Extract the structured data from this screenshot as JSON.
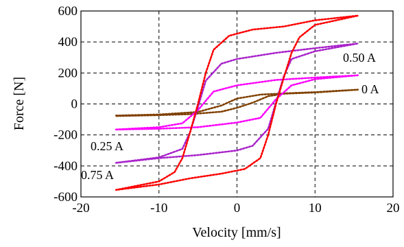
{
  "chart_data": {
    "type": "line",
    "title": "",
    "xlabel": "Velocity [mm/s]",
    "ylabel": "Force [N]",
    "xlim": [
      -20,
      20
    ],
    "ylim": [
      -600,
      600
    ],
    "xticks": [
      -20,
      -10,
      0,
      10,
      20
    ],
    "yticks": [
      600,
      400,
      200,
      0,
      -200,
      -400,
      -600
    ],
    "grid": true,
    "legend": "none",
    "annotations": [
      "0.50 A",
      "0 A",
      "0.25 A",
      "0.75 A"
    ],
    "series": [
      {
        "color": "#000000",
        "upper": [
          [
            -15.5,
            -75
          ],
          [
            -10,
            -68
          ],
          [
            -5,
            -52
          ],
          [
            -2,
            -10
          ],
          [
            0,
            35
          ],
          [
            3,
            60
          ],
          [
            6,
            68
          ],
          [
            10,
            76
          ],
          [
            15.5,
            92
          ]
        ],
        "lower": [
          [
            15.5,
            92
          ],
          [
            10,
            74
          ],
          [
            6,
            66
          ],
          [
            4,
            50
          ],
          [
            2,
            8
          ],
          [
            0,
            -25
          ],
          [
            -2,
            -50
          ],
          [
            -6,
            -66
          ],
          [
            -10,
            -72
          ],
          [
            -15.5,
            -78
          ]
        ]
      },
      {
        "color": "#804000",
        "upper": [
          [
            -15.5,
            -75
          ],
          [
            -10,
            -68
          ],
          [
            -5,
            -52
          ],
          [
            -2,
            -10
          ],
          [
            0,
            35
          ],
          [
            3,
            60
          ],
          [
            6,
            68
          ],
          [
            10,
            76
          ],
          [
            15.5,
            92
          ]
        ],
        "lower": [
          [
            15.5,
            92
          ],
          [
            10,
            74
          ],
          [
            6,
            66
          ],
          [
            4,
            50
          ],
          [
            2,
            8
          ],
          [
            0,
            -25
          ],
          [
            -2,
            -50
          ],
          [
            -6,
            -66
          ],
          [
            -10,
            -72
          ],
          [
            -15.5,
            -78
          ]
        ]
      },
      {
        "color": "#000000",
        "upper": [
          [
            -15.5,
            -165
          ],
          [
            -10,
            -150
          ],
          [
            -7,
            -125
          ],
          [
            -5,
            -40
          ],
          [
            -3,
            80
          ],
          [
            0,
            120
          ],
          [
            5,
            155
          ],
          [
            10,
            170
          ],
          [
            15.5,
            185
          ]
        ],
        "lower": [
          [
            15.5,
            185
          ],
          [
            10,
            160
          ],
          [
            7,
            120
          ],
          [
            5,
            30
          ],
          [
            3,
            -90
          ],
          [
            0,
            -120
          ],
          [
            -5,
            -150
          ],
          [
            -10,
            -160
          ],
          [
            -15.5,
            -165
          ]
        ]
      },
      {
        "color": "#ff00ff",
        "upper": [
          [
            -15.5,
            -165
          ],
          [
            -10,
            -150
          ],
          [
            -7,
            -125
          ],
          [
            -5,
            -40
          ],
          [
            -3,
            80
          ],
          [
            0,
            120
          ],
          [
            5,
            155
          ],
          [
            10,
            170
          ],
          [
            15.5,
            185
          ]
        ],
        "lower": [
          [
            15.5,
            185
          ],
          [
            10,
            160
          ],
          [
            7,
            120
          ],
          [
            5,
            30
          ],
          [
            3,
            -90
          ],
          [
            0,
            -120
          ],
          [
            -5,
            -150
          ],
          [
            -10,
            -160
          ],
          [
            -15.5,
            -165
          ]
        ]
      },
      {
        "color": "#000000",
        "upper": [
          [
            -15.5,
            -380
          ],
          [
            -10,
            -345
          ],
          [
            -7,
            -290
          ],
          [
            -6,
            -180
          ],
          [
            -5,
            -20
          ],
          [
            -4,
            150
          ],
          [
            -2,
            260
          ],
          [
            0,
            290
          ],
          [
            5,
            330
          ],
          [
            10,
            360
          ],
          [
            15.5,
            390
          ]
        ],
        "lower": [
          [
            15.5,
            390
          ],
          [
            10,
            340
          ],
          [
            7,
            290
          ],
          [
            6,
            180
          ],
          [
            5,
            10
          ],
          [
            4,
            -160
          ],
          [
            2,
            -270
          ],
          [
            0,
            -300
          ],
          [
            -5,
            -330
          ],
          [
            -10,
            -350
          ],
          [
            -15.5,
            -380
          ]
        ]
      },
      {
        "color": "#aa22cc",
        "upper": [
          [
            -15.5,
            -380
          ],
          [
            -10,
            -345
          ],
          [
            -7,
            -290
          ],
          [
            -6,
            -180
          ],
          [
            -5,
            -20
          ],
          [
            -4,
            150
          ],
          [
            -2,
            260
          ],
          [
            0,
            290
          ],
          [
            5,
            330
          ],
          [
            10,
            360
          ],
          [
            15.5,
            390
          ]
        ],
        "lower": [
          [
            15.5,
            390
          ],
          [
            10,
            340
          ],
          [
            7,
            290
          ],
          [
            6,
            180
          ],
          [
            5,
            10
          ],
          [
            4,
            -160
          ],
          [
            2,
            -270
          ],
          [
            0,
            -300
          ],
          [
            -5,
            -330
          ],
          [
            -10,
            -350
          ],
          [
            -15.5,
            -380
          ]
        ]
      },
      {
        "color": "#000000",
        "upper": [
          [
            -15.5,
            -555
          ],
          [
            -10,
            -500
          ],
          [
            -8,
            -440
          ],
          [
            -7,
            -350
          ],
          [
            -6,
            -180
          ],
          [
            -5,
            0
          ],
          [
            -4,
            200
          ],
          [
            -3,
            350
          ],
          [
            -1,
            440
          ],
          [
            2,
            480
          ],
          [
            6,
            500
          ],
          [
            10,
            540
          ],
          [
            15.5,
            570
          ]
        ],
        "lower": [
          [
            15.5,
            570
          ],
          [
            10,
            510
          ],
          [
            8,
            430
          ],
          [
            7,
            330
          ],
          [
            6,
            170
          ],
          [
            5,
            0
          ],
          [
            4,
            -200
          ],
          [
            3,
            -350
          ],
          [
            1,
            -420
          ],
          [
            -2,
            -450
          ],
          [
            -6,
            -480
          ],
          [
            -10,
            -520
          ],
          [
            -15.5,
            -555
          ]
        ]
      },
      {
        "color": "#ff0000",
        "upper": [
          [
            -15.5,
            -555
          ],
          [
            -10,
            -500
          ],
          [
            -8,
            -440
          ],
          [
            -7,
            -350
          ],
          [
            -6,
            -180
          ],
          [
            -5,
            0
          ],
          [
            -4,
            200
          ],
          [
            -3,
            350
          ],
          [
            -1,
            440
          ],
          [
            2,
            480
          ],
          [
            6,
            500
          ],
          [
            10,
            540
          ],
          [
            15.5,
            570
          ]
        ],
        "lower": [
          [
            15.5,
            570
          ],
          [
            10,
            510
          ],
          [
            8,
            430
          ],
          [
            7,
            330
          ],
          [
            6,
            170
          ],
          [
            5,
            0
          ],
          [
            4,
            -200
          ],
          [
            3,
            -350
          ],
          [
            1,
            -420
          ],
          [
            -2,
            -450
          ],
          [
            -6,
            -480
          ],
          [
            -10,
            -520
          ],
          [
            -15.5,
            -555
          ]
        ]
      }
    ]
  }
}
